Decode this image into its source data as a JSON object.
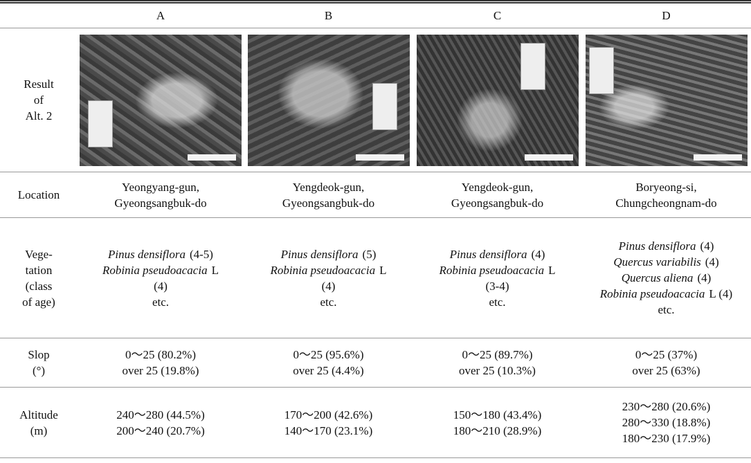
{
  "header": {
    "columns": [
      "A",
      "B",
      "C",
      "D"
    ]
  },
  "image_row": {
    "label": [
      "Result",
      "of",
      "Alt. 2"
    ]
  },
  "rows": [
    {
      "label": [
        "Location"
      ],
      "cells": [
        [
          {
            "plain": "Yeongyang-gun,"
          },
          {
            "plain": "Gyeongsangbuk-do"
          }
        ],
        [
          {
            "plain": "Yengdeok-gun,"
          },
          {
            "plain": "Gyeongsangbuk-do"
          }
        ],
        [
          {
            "plain": "Yengdeok-gun,"
          },
          {
            "plain": "Gyeongsangbuk-do"
          }
        ],
        [
          {
            "plain": "Boryeong-si,"
          },
          {
            "plain": "Chungcheongnam-do"
          }
        ]
      ]
    },
    {
      "label": [
        "Vege-",
        "tation",
        "(class",
        "of age)"
      ],
      "cells": [
        [
          {
            "italic": "Pinus densiflora",
            "plain": "(4-5)"
          },
          {
            "italic": "Robinia pseudoacacia",
            "plain": "L"
          },
          {
            "plain": "(4)"
          },
          {
            "plain": "etc."
          }
        ],
        [
          {
            "italic": "Pinus densiflora",
            "plain": "(5)"
          },
          {
            "italic": "Robinia pseudoacacia",
            "plain": "L"
          },
          {
            "plain": "(4)"
          },
          {
            "plain": "etc."
          }
        ],
        [
          {
            "italic": "Pinus densiflora",
            "plain": "(4)"
          },
          {
            "italic": "Robinia pseudoacacia",
            "plain": "L"
          },
          {
            "plain": "(3-4)"
          },
          {
            "plain": "etc."
          }
        ],
        [
          {
            "italic": "Pinus densiflora",
            "plain": "(4)"
          },
          {
            "italic": "Quercus variabilis",
            "plain": "(4)"
          },
          {
            "italic": "Quercus aliena",
            "plain": "(4)"
          },
          {
            "italic": "Robinia pseudoacacia",
            "plain": "L (4)"
          },
          {
            "plain": "etc."
          }
        ]
      ]
    },
    {
      "label": [
        "Slop",
        "(°)"
      ],
      "cells": [
        [
          {
            "plain": "0～25 (80.2%)"
          },
          {
            "plain": "over 25 (19.8%)"
          }
        ],
        [
          {
            "plain": "0～25 (95.6%)"
          },
          {
            "plain": "over 25 (4.4%)"
          }
        ],
        [
          {
            "plain": "0～25 (89.7%)"
          },
          {
            "plain": "over 25 (10.3%)"
          }
        ],
        [
          {
            "plain": "0～25 (37%)"
          },
          {
            "plain": "over 25 (63%)"
          }
        ]
      ]
    },
    {
      "label": [
        "Altitude",
        "(m)"
      ],
      "cells": [
        [
          {
            "plain": "240～280 (44.5%)"
          },
          {
            "plain": "200～240 (20.7%)"
          }
        ],
        [
          {
            "plain": "170～200 (42.6%)"
          },
          {
            "plain": "140～170 (23.1%)"
          }
        ],
        [
          {
            "plain": "150～180 (43.4%)"
          },
          {
            "plain": "180～210 (28.9%)"
          }
        ],
        [
          {
            "plain": "230～280 (20.6%)"
          },
          {
            "plain": "280～330 (18.8%)"
          },
          {
            "plain": "180～230 (17.9%)"
          }
        ]
      ]
    }
  ]
}
